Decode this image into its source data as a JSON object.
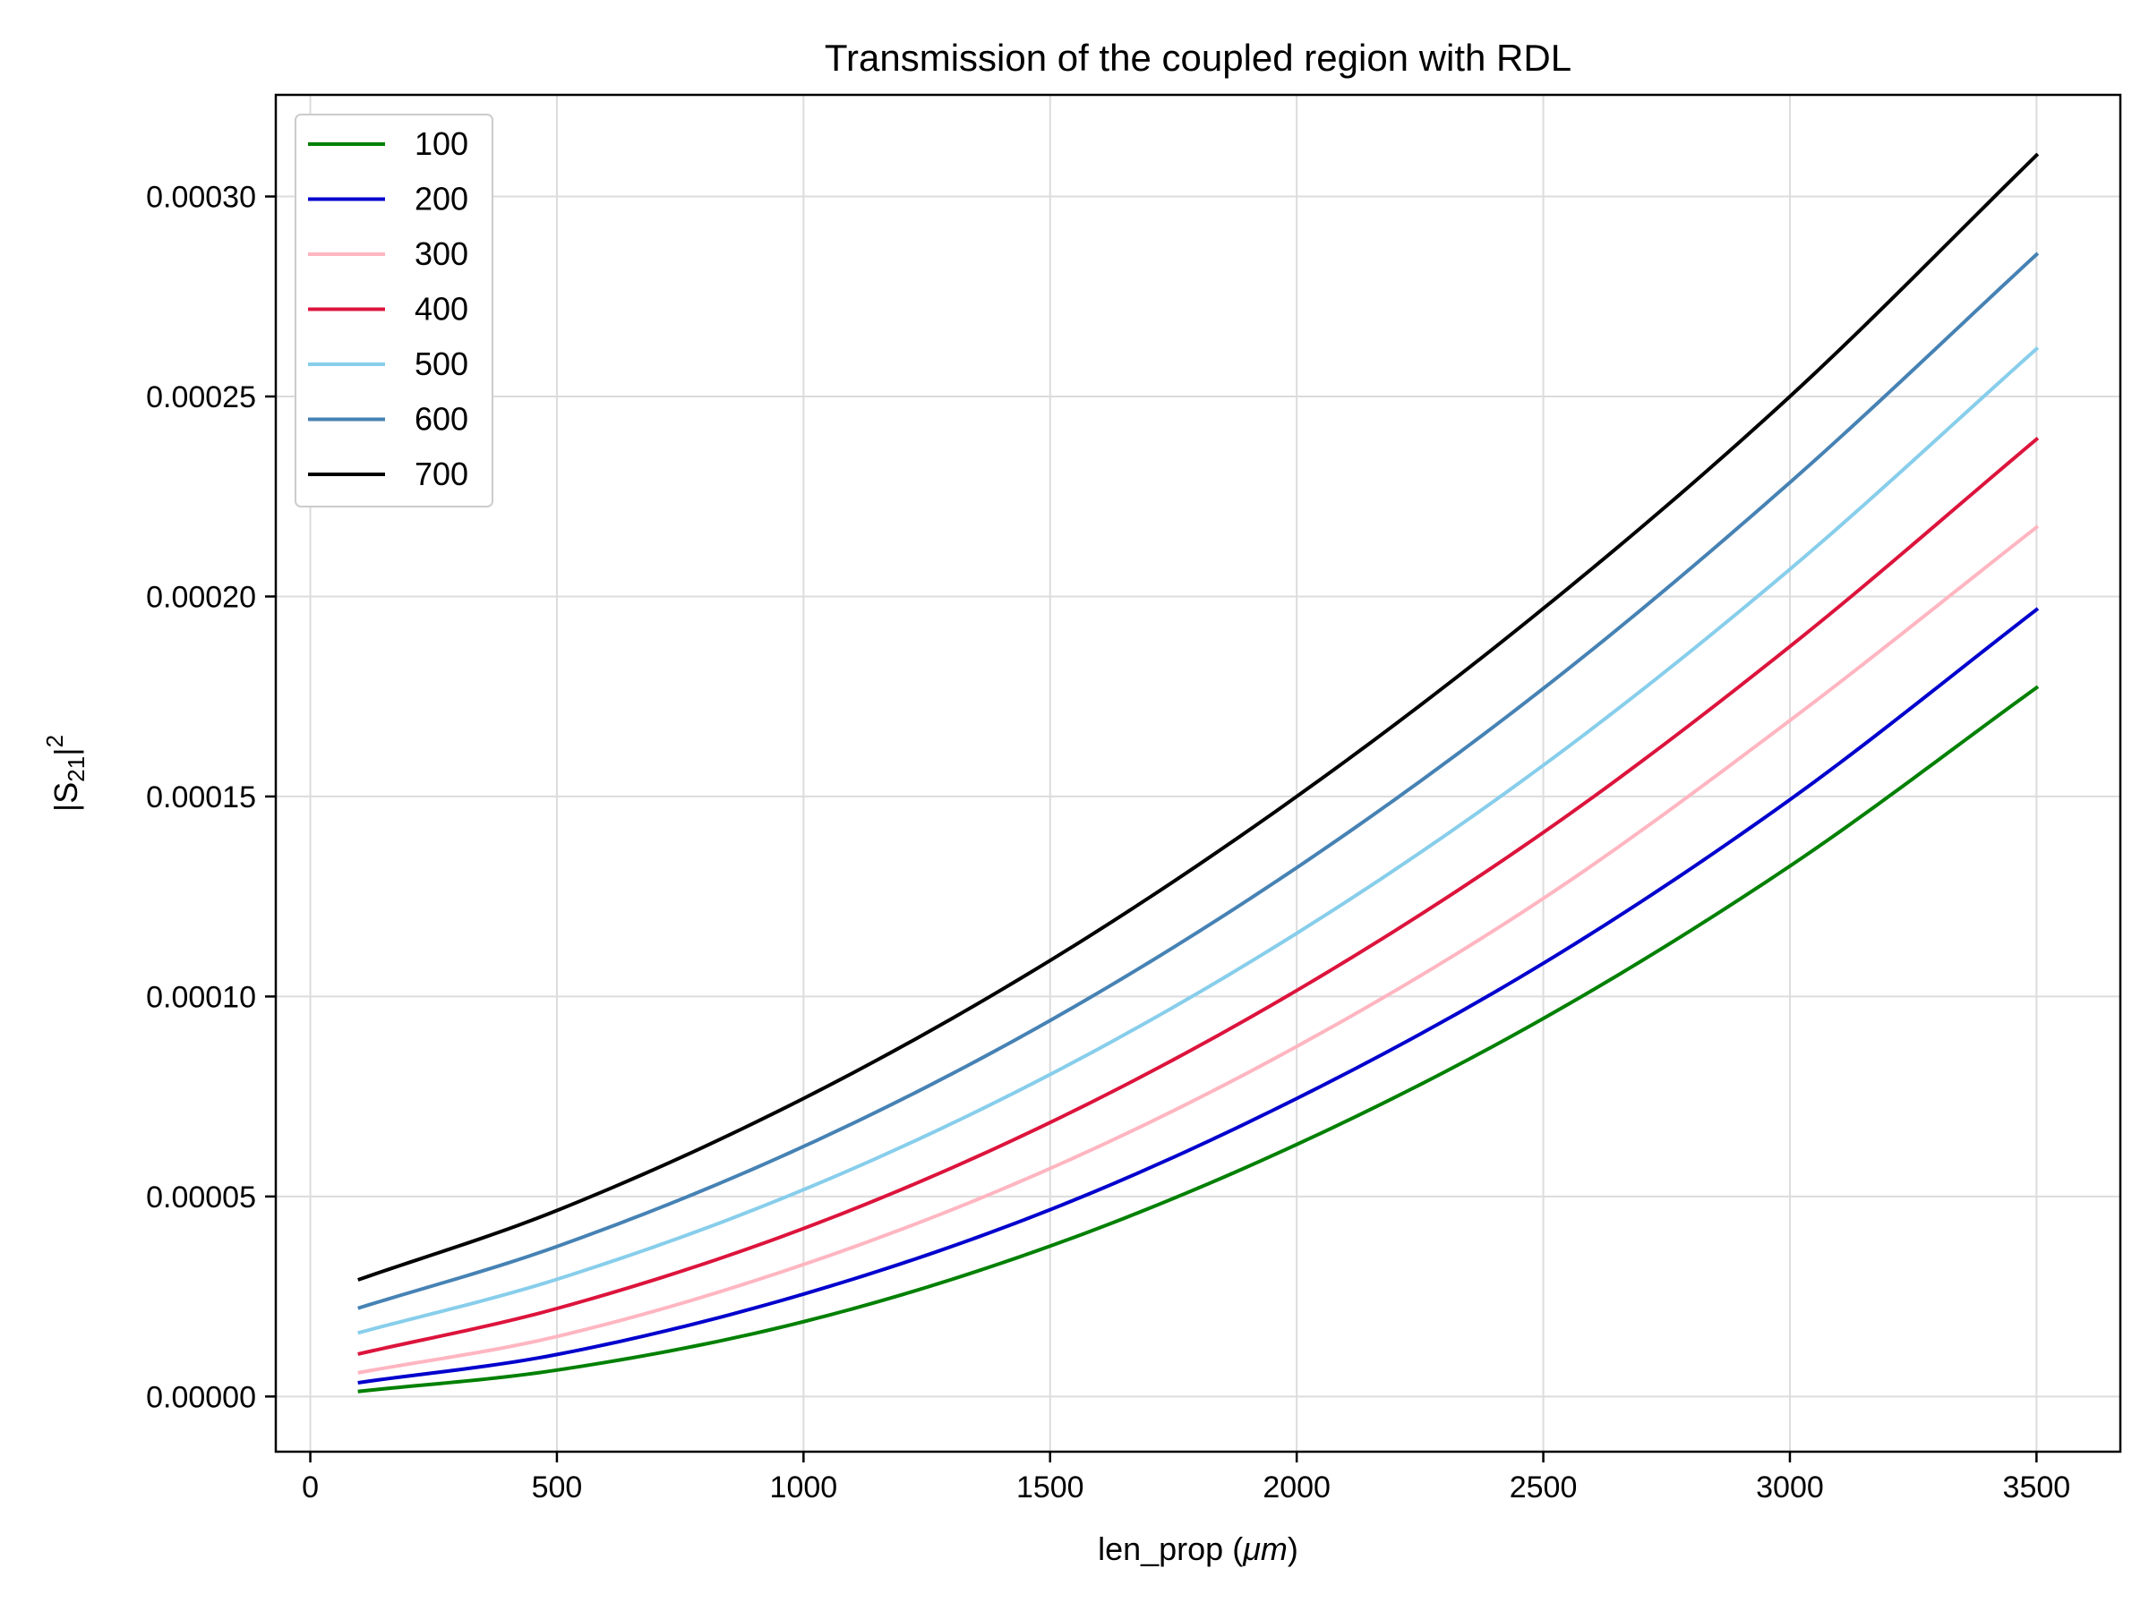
{
  "chart_data": {
    "type": "line",
    "title": "Transmission of the coupled region with RDL",
    "xlabel": "len_prop (μm)",
    "xlabel_text": "len_prop (",
    "xlabel_unit": "μm",
    "xlabel_close": ")",
    "ylabel_base": "|S",
    "ylabel_sub": "21",
    "ylabel_bar": "|",
    "ylabel_sup": "2",
    "xlim": [
      -70,
      3670
    ],
    "ylim": [
      -1.38e-05,
      0.0003254
    ],
    "x_ticks": [
      0,
      500,
      1000,
      1500,
      2000,
      2500,
      3000,
      3500
    ],
    "x_tick_labels": [
      "0",
      "500",
      "1000",
      "1500",
      "2000",
      "2500",
      "3000",
      "3500"
    ],
    "y_ticks": [
      0,
      5e-05,
      0.0001,
      0.00015,
      0.0002,
      0.00025,
      0.0003
    ],
    "y_tick_labels": [
      "0.00000",
      "0.00005",
      "0.00010",
      "0.00015",
      "0.00020",
      "0.00025",
      "0.00030"
    ],
    "grid": true,
    "legend_position": "top-left",
    "x": [
      100,
      500,
      1000,
      1500,
      2000,
      2500,
      3000,
      3500
    ],
    "series": [
      {
        "name": "100",
        "color": "#008000",
        "values": [
          1.3e-06,
          6.6e-06,
          1.87e-05,
          3.76e-05,
          6.3e-05,
          9.45e-05,
          0.0001326,
          0.0001772
        ]
      },
      {
        "name": "200",
        "color": "#0000cd",
        "values": [
          3.5e-06,
          1.05e-05,
          2.56e-05,
          4.67e-05,
          7.45e-05,
          0.0001083,
          0.0001492,
          0.0001967
        ]
      },
      {
        "name": "300",
        "color": "#ffb6c1",
        "values": [
          6e-06,
          1.5e-05,
          3.3e-05,
          5.7e-05,
          8.75e-05,
          0.0001245,
          0.000169,
          0.0002173
        ]
      },
      {
        "name": "400",
        "color": "#dc143c",
        "values": [
          1.07e-05,
          2.2e-05,
          4.2e-05,
          6.85e-05,
          0.0001015,
          0.000141,
          0.0001875,
          0.0002393
        ]
      },
      {
        "name": "500",
        "color": "#87ceeb",
        "values": [
          1.6e-05,
          2.93e-05,
          5.17e-05,
          8.05e-05,
          0.0001158,
          0.0001578,
          0.0002068,
          0.0002619
        ]
      },
      {
        "name": "600",
        "color": "#4682b4",
        "values": [
          2.22e-05,
          3.75e-05,
          6.25e-05,
          9.4e-05,
          0.0001322,
          0.000177,
          0.0002285,
          0.0002855
        ]
      },
      {
        "name": "700",
        "color": "#000000",
        "values": [
          2.93e-05,
          4.65e-05,
          7.45e-05,
          0.000109,
          0.00015,
          0.000197,
          0.00025,
          0.0003103
        ]
      }
    ]
  }
}
